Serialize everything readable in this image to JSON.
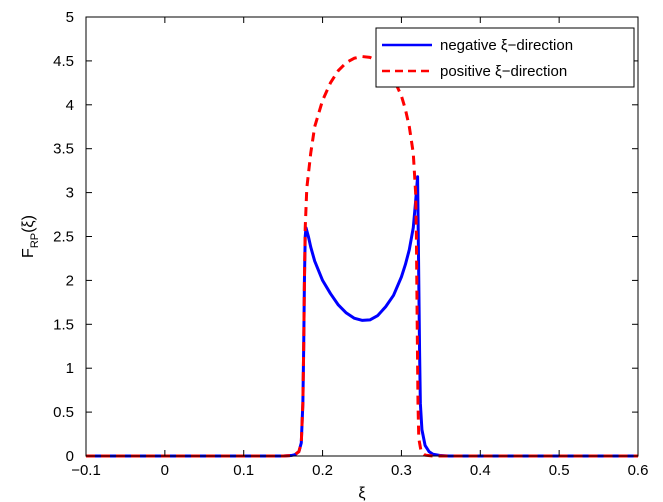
{
  "chart_data": {
    "type": "line",
    "title": "",
    "xlabel": "ξ",
    "ylabel": {
      "main": "F",
      "sub": "RP",
      "rest": "(ξ)"
    },
    "xlim": [
      -0.1,
      0.6
    ],
    "ylim": [
      0,
      5
    ],
    "xticks": [
      -0.1,
      0,
      0.1,
      0.2,
      0.3,
      0.4,
      0.5,
      0.6
    ],
    "xtick_labels": [
      "−0.1",
      "0",
      "0.1",
      "0.2",
      "0.3",
      "0.4",
      "0.5",
      "0.6"
    ],
    "yticks": [
      0,
      0.5,
      1,
      1.5,
      2,
      2.5,
      3,
      3.5,
      4,
      4.5,
      5
    ],
    "ytick_labels": [
      "0",
      "0.5",
      "1",
      "1.5",
      "2",
      "2.5",
      "3",
      "3.5",
      "4",
      "4.5",
      "5"
    ],
    "grid": false,
    "legend_position": "top-right",
    "series": [
      {
        "name": "negative ξ−direction",
        "color": "#0000ff",
        "style": "solid",
        "points": [
          [
            -0.1,
            0
          ],
          [
            0.15,
            0
          ],
          [
            0.16,
            0.005
          ],
          [
            0.165,
            0.015
          ],
          [
            0.17,
            0.05
          ],
          [
            0.173,
            0.15
          ],
          [
            0.175,
            0.6
          ],
          [
            0.176,
            1.2
          ],
          [
            0.177,
            2.0
          ],
          [
            0.178,
            2.5
          ],
          [
            0.179,
            2.6
          ],
          [
            0.182,
            2.5
          ],
          [
            0.185,
            2.38
          ],
          [
            0.19,
            2.22
          ],
          [
            0.2,
            2.0
          ],
          [
            0.21,
            1.85
          ],
          [
            0.22,
            1.72
          ],
          [
            0.23,
            1.63
          ],
          [
            0.24,
            1.57
          ],
          [
            0.25,
            1.545
          ],
          [
            0.26,
            1.55
          ],
          [
            0.27,
            1.6
          ],
          [
            0.28,
            1.7
          ],
          [
            0.29,
            1.83
          ],
          [
            0.3,
            2.04
          ],
          [
            0.305,
            2.18
          ],
          [
            0.31,
            2.35
          ],
          [
            0.315,
            2.6
          ],
          [
            0.318,
            2.9
          ],
          [
            0.3205,
            3.18
          ],
          [
            0.321,
            2.8
          ],
          [
            0.322,
            2.0
          ],
          [
            0.323,
            1.2
          ],
          [
            0.324,
            0.6
          ],
          [
            0.326,
            0.3
          ],
          [
            0.33,
            0.12
          ],
          [
            0.335,
            0.05
          ],
          [
            0.34,
            0.02
          ],
          [
            0.35,
            0.005
          ],
          [
            0.36,
            0
          ],
          [
            0.6,
            0
          ]
        ]
      },
      {
        "name": "positive ξ−direction",
        "color": "#ff0000",
        "style": "dashed",
        "points": [
          [
            -0.1,
            0
          ],
          [
            0.15,
            0
          ],
          [
            0.16,
            0.005
          ],
          [
            0.165,
            0.015
          ],
          [
            0.17,
            0.05
          ],
          [
            0.173,
            0.15
          ],
          [
            0.175,
            0.6
          ],
          [
            0.176,
            1.2
          ],
          [
            0.177,
            2.0
          ],
          [
            0.178,
            2.6
          ],
          [
            0.18,
            3.05
          ],
          [
            0.185,
            3.45
          ],
          [
            0.19,
            3.75
          ],
          [
            0.2,
            4.05
          ],
          [
            0.21,
            4.25
          ],
          [
            0.22,
            4.39
          ],
          [
            0.23,
            4.48
          ],
          [
            0.24,
            4.53
          ],
          [
            0.25,
            4.55
          ],
          [
            0.26,
            4.54
          ],
          [
            0.27,
            4.5
          ],
          [
            0.28,
            4.42
          ],
          [
            0.29,
            4.3
          ],
          [
            0.3,
            4.1
          ],
          [
            0.305,
            3.95
          ],
          [
            0.31,
            3.75
          ],
          [
            0.315,
            3.45
          ],
          [
            0.318,
            3.0
          ],
          [
            0.319,
            2.5
          ],
          [
            0.32,
            1.5
          ],
          [
            0.321,
            0.6
          ],
          [
            0.322,
            0.2
          ],
          [
            0.325,
            0.05
          ],
          [
            0.33,
            0.01
          ],
          [
            0.34,
            0
          ],
          [
            0.6,
            0
          ]
        ]
      }
    ]
  }
}
